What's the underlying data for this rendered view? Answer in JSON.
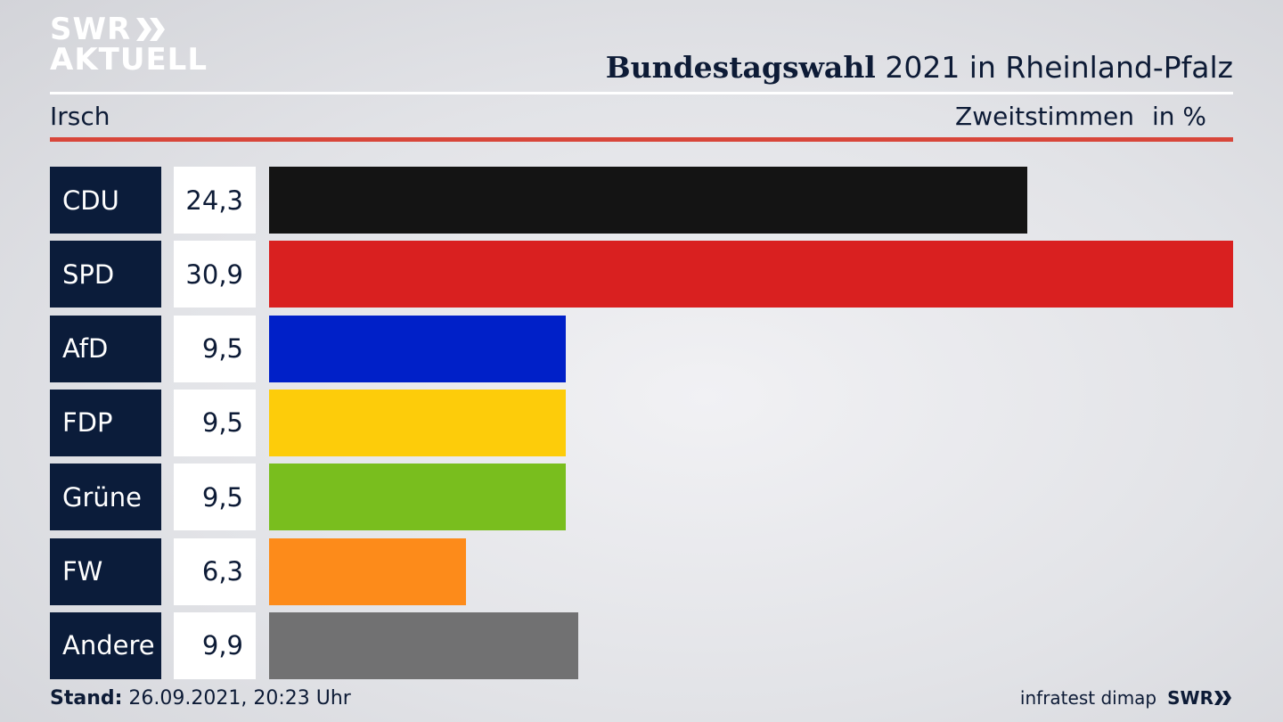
{
  "brand": {
    "line1": "SWR",
    "line2": "AKTUELL"
  },
  "title": {
    "bold": "Bundestagswahl",
    "rest": " 2021 in Rheinland-Pfalz"
  },
  "subtitle": {
    "region": "Irsch",
    "metric": "Zweitstimmen",
    "unit": "in %"
  },
  "chart_data": {
    "type": "bar",
    "orientation": "horizontal",
    "categories": [
      "CDU",
      "SPD",
      "AfD",
      "FDP",
      "Grüne",
      "FW",
      "Andere"
    ],
    "values": [
      24.3,
      30.9,
      9.5,
      9.5,
      9.5,
      6.3,
      9.9
    ],
    "value_labels": [
      "24,3",
      "30,9",
      "9,5",
      "9,5",
      "9,5",
      "6,3",
      "9,9"
    ],
    "colors": [
      "#141414",
      "#d92020",
      "#0020c8",
      "#fdcc0a",
      "#79be1e",
      "#fd8b1a",
      "#717172"
    ],
    "xlim": [
      0,
      30.9
    ],
    "grid": false
  },
  "footer": {
    "stand_label": "Stand:",
    "stand_value": " 26.09.2021, 20:23 Uhr",
    "source": "infratest dimap",
    "logo": "SWR"
  }
}
